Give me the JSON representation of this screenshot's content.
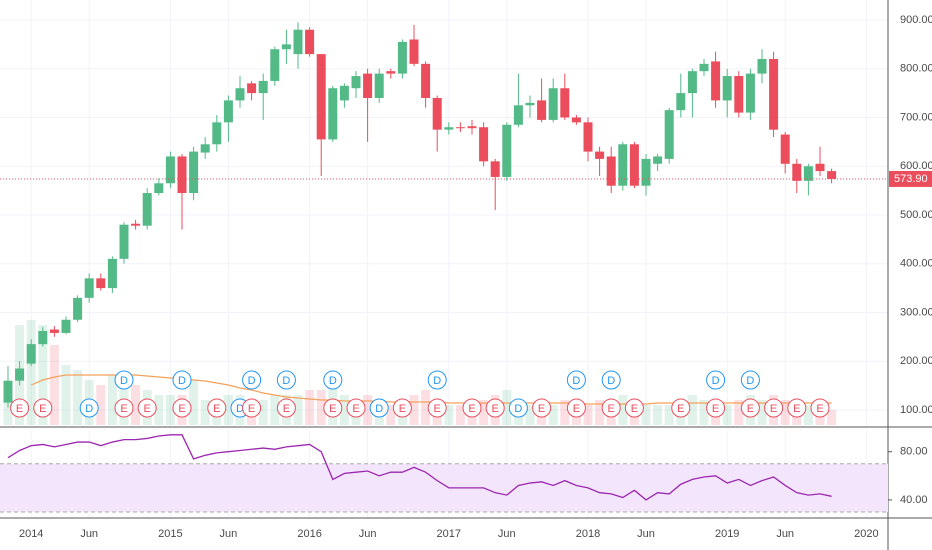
{
  "chart_data": {
    "type": "candlestick",
    "categories": [
      "2013-11",
      "2013-12",
      "2014-01",
      "2014-02",
      "2014-03",
      "2014-04",
      "2014-05",
      "2014-06",
      "2014-07",
      "2014-08",
      "2014-09",
      "2014-10",
      "2014-11",
      "2014-12",
      "2015-01",
      "2015-02",
      "2015-03",
      "2015-04",
      "2015-05",
      "2015-06",
      "2015-07",
      "2015-08",
      "2015-09",
      "2015-10",
      "2015-11",
      "2015-12",
      "2016-01",
      "2016-02",
      "2016-03",
      "2016-04",
      "2016-05",
      "2016-06",
      "2016-07",
      "2016-08",
      "2016-09",
      "2016-10",
      "2016-11",
      "2016-12",
      "2017-01",
      "2017-02",
      "2017-03",
      "2017-04",
      "2017-05",
      "2017-06",
      "2017-07",
      "2017-08",
      "2017-09",
      "2017-10",
      "2017-11",
      "2017-12",
      "2018-01",
      "2018-02",
      "2018-03",
      "2018-04",
      "2018-05",
      "2018-06",
      "2018-07",
      "2018-08",
      "2018-09",
      "2018-10",
      "2018-11",
      "2018-12",
      "2019-01",
      "2019-02",
      "2019-03",
      "2019-04",
      "2019-05",
      "2019-06",
      "2019-07",
      "2019-08",
      "2019-09",
      "2019-10"
    ],
    "open": [
      115,
      160,
      195,
      235,
      265,
      258,
      285,
      330,
      370,
      350,
      410,
      482,
      478,
      545,
      565,
      620,
      545,
      628,
      645,
      690,
      735,
      770,
      750,
      775,
      840,
      830,
      880,
      830,
      655,
      735,
      760,
      790,
      740,
      795,
      790,
      860,
      810,
      740,
      675,
      680,
      682,
      680,
      610,
      578,
      685,
      725,
      735,
      695,
      760,
      700,
      690,
      630,
      620,
      560,
      645,
      560,
      605,
      615,
      715,
      750,
      795,
      815,
      735,
      785,
      710,
      790,
      820,
      665,
      605,
      570,
      605,
      590
    ],
    "high": [
      190,
      200,
      245,
      270,
      272,
      292,
      335,
      380,
      380,
      415,
      485,
      490,
      555,
      575,
      630,
      625,
      640,
      660,
      705,
      745,
      785,
      775,
      790,
      845,
      880,
      895,
      885,
      830,
      765,
      770,
      795,
      800,
      800,
      800,
      860,
      890,
      815,
      745,
      690,
      690,
      695,
      690,
      615,
      690,
      790,
      745,
      780,
      780,
      790,
      705,
      700,
      640,
      640,
      650,
      650,
      625,
      625,
      720,
      790,
      800,
      820,
      835,
      800,
      795,
      800,
      840,
      835,
      670,
      615,
      605,
      640,
      595
    ],
    "low": [
      105,
      150,
      190,
      230,
      250,
      255,
      280,
      320,
      345,
      340,
      400,
      470,
      470,
      540,
      555,
      470,
      530,
      615,
      630,
      650,
      720,
      735,
      695,
      765,
      810,
      800,
      825,
      580,
      650,
      720,
      740,
      650,
      730,
      780,
      780,
      805,
      720,
      630,
      665,
      670,
      665,
      600,
      510,
      570,
      680,
      700,
      690,
      690,
      695,
      685,
      610,
      580,
      545,
      550,
      555,
      540,
      590,
      605,
      700,
      700,
      785,
      720,
      700,
      700,
      695,
      770,
      660,
      585,
      545,
      540,
      580,
      565
    ],
    "close": [
      160,
      185,
      235,
      262,
      258,
      285,
      330,
      370,
      350,
      410,
      480,
      478,
      545,
      565,
      620,
      545,
      630,
      645,
      690,
      735,
      760,
      750,
      775,
      840,
      850,
      880,
      830,
      655,
      760,
      765,
      785,
      740,
      790,
      790,
      855,
      810,
      740,
      675,
      680,
      678,
      678,
      610,
      578,
      685,
      725,
      730,
      695,
      760,
      700,
      690,
      630,
      615,
      560,
      645,
      560,
      615,
      620,
      715,
      750,
      795,
      810,
      735,
      785,
      710,
      790,
      820,
      675,
      605,
      570,
      600,
      590,
      573.9
    ],
    "up_color": "#53b987",
    "down_color": "#eb4d5c",
    "volume": [
      40,
      100,
      105,
      100,
      80,
      60,
      55,
      45,
      40,
      50,
      45,
      40,
      35,
      30,
      30,
      30,
      45,
      25,
      25,
      30,
      30,
      25,
      25,
      30,
      30,
      30,
      35,
      35,
      40,
      30,
      25,
      30,
      25,
      20,
      25,
      30,
      35,
      25,
      20,
      20,
      20,
      25,
      30,
      35,
      25,
      20,
      20,
      20,
      25,
      25,
      20,
      25,
      25,
      30,
      25,
      20,
      20,
      20,
      25,
      30,
      25,
      25,
      20,
      25,
      30,
      25,
      30,
      25,
      25,
      20,
      20,
      15
    ],
    "volume_ma": [
      null,
      null,
      40,
      45,
      48,
      50,
      50,
      50,
      50,
      50,
      50,
      50,
      49,
      48,
      47,
      46,
      45,
      44,
      42,
      40,
      37,
      35,
      32,
      30,
      28,
      27,
      26,
      25,
      25,
      24,
      24,
      24,
      24,
      23,
      23,
      23,
      23,
      23,
      22,
      22,
      22,
      22,
      22,
      22,
      22,
      22,
      22,
      22,
      22,
      22,
      21,
      21,
      21,
      21,
      21,
      21,
      22,
      22,
      22,
      22,
      22,
      22,
      22,
      22,
      22,
      22,
      22,
      22,
      22,
      22,
      22,
      22
    ],
    "volume_ma_color": "#f5a15a",
    "ylim": [
      65,
      941
    ],
    "yticks": [
      {
        "value": 100,
        "label": "100.00"
      },
      {
        "value": 200,
        "label": "200.00"
      },
      {
        "value": 300,
        "label": "300.00"
      },
      {
        "value": 400,
        "label": "400.00"
      },
      {
        "value": 500,
        "label": "500.00"
      },
      {
        "value": 600,
        "label": "600.00"
      },
      {
        "value": 700,
        "label": "700.00"
      },
      {
        "value": 800,
        "label": "800.00"
      },
      {
        "value": 900,
        "label": "900.00"
      }
    ],
    "xticks": [
      {
        "value": "2014-01",
        "label": "2014"
      },
      {
        "value": "2014-06",
        "label": "Jun"
      },
      {
        "value": "2015-01",
        "label": "2015"
      },
      {
        "value": "2015-06",
        "label": "Jun"
      },
      {
        "value": "2016-01",
        "label": "2016"
      },
      {
        "value": "2016-06",
        "label": "Jun"
      },
      {
        "value": "2017-01",
        "label": "2017"
      },
      {
        "value": "2017-06",
        "label": "Jun"
      },
      {
        "value": "2018-01",
        "label": "2018"
      },
      {
        "value": "2018-06",
        "label": "Jun"
      },
      {
        "value": "2019-01",
        "label": "2019"
      },
      {
        "value": "2019-06",
        "label": "Jun"
      },
      {
        "value": "2020-01",
        "label": "2020"
      }
    ],
    "last_price": {
      "value": 573.9,
      "label": "573.90",
      "color": "#eb4d5c"
    },
    "events": [
      {
        "label": "E",
        "date": "2013-12",
        "color": "#eb4d5c"
      },
      {
        "label": "E",
        "date": "2014-02",
        "color": "#eb4d5c"
      },
      {
        "label": "D",
        "date": "2014-06",
        "color": "#2196f3"
      },
      {
        "label": "D",
        "date": "2014-09",
        "color": "#2196f3"
      },
      {
        "label": "E",
        "date": "2014-09",
        "color": "#eb4d5c"
      },
      {
        "label": "E",
        "date": "2014-11",
        "color": "#eb4d5c"
      },
      {
        "label": "D",
        "date": "2015-02",
        "color": "#2196f3"
      },
      {
        "label": "E",
        "date": "2015-02",
        "color": "#eb4d5c"
      },
      {
        "label": "E",
        "date": "2015-05",
        "color": "#eb4d5c"
      },
      {
        "label": "D",
        "date": "2015-07",
        "color": "#2196f3"
      },
      {
        "label": "D",
        "date": "2015-08",
        "color": "#2196f3"
      },
      {
        "label": "E",
        "date": "2015-08",
        "color": "#eb4d5c"
      },
      {
        "label": "D",
        "date": "2015-11",
        "color": "#2196f3"
      },
      {
        "label": "E",
        "date": "2015-11",
        "color": "#eb4d5c"
      },
      {
        "label": "D",
        "date": "2016-03",
        "color": "#2196f3"
      },
      {
        "label": "E",
        "date": "2016-03",
        "color": "#eb4d5c"
      },
      {
        "label": "E",
        "date": "2016-05",
        "color": "#eb4d5c"
      },
      {
        "label": "D",
        "date": "2016-07",
        "color": "#2196f3"
      },
      {
        "label": "E",
        "date": "2016-09",
        "color": "#eb4d5c"
      },
      {
        "label": "D",
        "date": "2016-12",
        "color": "#2196f3"
      },
      {
        "label": "E",
        "date": "2016-12",
        "color": "#eb4d5c"
      },
      {
        "label": "E",
        "date": "2017-03",
        "color": "#eb4d5c"
      },
      {
        "label": "E",
        "date": "2017-05",
        "color": "#eb4d5c"
      },
      {
        "label": "D",
        "date": "2017-07",
        "color": "#2196f3"
      },
      {
        "label": "E",
        "date": "2017-09",
        "color": "#eb4d5c"
      },
      {
        "label": "D",
        "date": "2017-12",
        "color": "#2196f3"
      },
      {
        "label": "E",
        "date": "2017-12",
        "color": "#eb4d5c"
      },
      {
        "label": "D",
        "date": "2018-03",
        "color": "#2196f3"
      },
      {
        "label": "E",
        "date": "2018-03",
        "color": "#eb4d5c"
      },
      {
        "label": "E",
        "date": "2018-05",
        "color": "#eb4d5c"
      },
      {
        "label": "E",
        "date": "2018-09",
        "color": "#eb4d5c"
      },
      {
        "label": "D",
        "date": "2018-12",
        "color": "#2196f3"
      },
      {
        "label": "E",
        "date": "2018-12",
        "color": "#eb4d5c"
      },
      {
        "label": "D",
        "date": "2019-03",
        "color": "#2196f3"
      },
      {
        "label": "E",
        "date": "2019-03",
        "color": "#eb4d5c"
      },
      {
        "label": "E",
        "date": "2019-05",
        "color": "#eb4d5c"
      },
      {
        "label": "E",
        "date": "2019-07",
        "color": "#eb4d5c"
      },
      {
        "label": "E",
        "date": "2019-09",
        "color": "#eb4d5c"
      }
    ],
    "rsi": {
      "values": [
        75,
        81,
        85,
        86,
        84,
        86,
        88,
        88,
        85,
        88,
        90,
        90,
        91,
        93,
        94,
        94,
        74,
        77,
        79,
        80,
        81,
        82,
        83,
        82,
        84,
        85,
        86,
        80,
        57,
        62,
        63,
        64,
        60,
        63,
        63,
        67,
        63,
        56,
        50,
        50,
        50,
        50,
        46,
        44,
        52,
        54,
        55,
        52,
        56,
        52,
        50,
        46,
        45,
        42,
        48,
        40,
        46,
        45,
        53,
        57,
        59,
        60,
        54,
        57,
        52,
        56,
        59,
        52,
        46,
        44,
        45,
        43
      ],
      "color": "#9c27b0",
      "band": [
        30,
        70
      ],
      "band_color": "#f3e5fb",
      "ylim": [
        25,
        98
      ],
      "yticks": [
        {
          "value": 40,
          "label": "40.00"
        },
        {
          "value": 80,
          "label": "80.00"
        }
      ]
    }
  }
}
